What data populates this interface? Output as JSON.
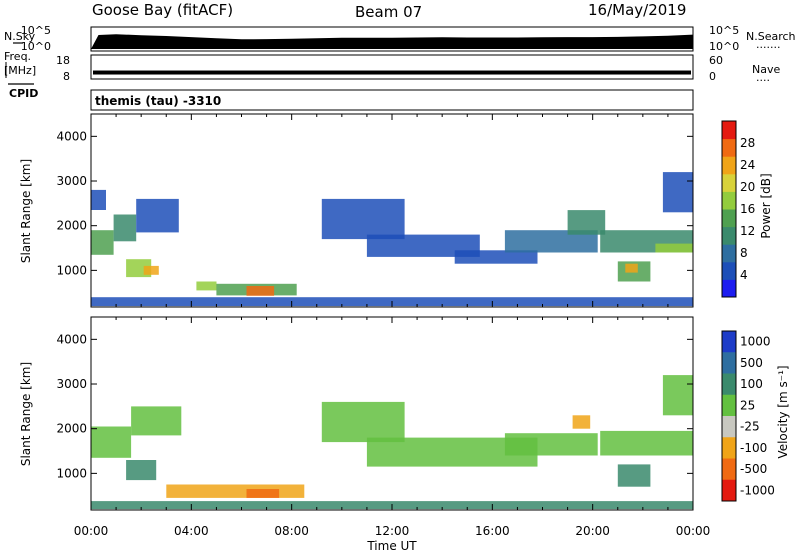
{
  "header": {
    "station": "Goose Bay (fitACF)",
    "beam": "Beam 07",
    "date": "16/May/2019"
  },
  "side_labels": {
    "nsky": "N.Sky",
    "nsearch": "N.Search",
    "nsearch_dots": "·······",
    "freq_line1": "Freq.",
    "freq_line2": "[MHz]",
    "nave": "Nave",
    "nave_dots": "····",
    "cpid": "CPID",
    "cpid_value": "themis (tau) -3310"
  },
  "colors": {
    "trace": "#000000",
    "grid": "#000000"
  },
  "chart_data": [
    {
      "type": "line",
      "id": "noise",
      "left_axis_labels": [
        "10^5",
        "10^0"
      ],
      "right_axis_labels": [
        "10^5",
        "10^0"
      ],
      "x_range": [
        0,
        24
      ],
      "series": [
        {
          "x": [
            0.0,
            0.3,
            1.0,
            2.0,
            3.0,
            4.0,
            5.0,
            6.0,
            7.0,
            8.0,
            9.0,
            10.0,
            11.0,
            12.0,
            13.0,
            14.0,
            15.0,
            16.0,
            17.0,
            18.0,
            19.0,
            20.0,
            21.0,
            22.0,
            23.0,
            24.0
          ],
          "y": [
            0.0,
            0.78,
            0.82,
            0.76,
            0.72,
            0.66,
            0.6,
            0.54,
            0.55,
            0.57,
            0.6,
            0.62,
            0.63,
            0.63,
            0.64,
            0.65,
            0.64,
            0.64,
            0.64,
            0.65,
            0.66,
            0.66,
            0.67,
            0.7,
            0.74,
            0.8
          ]
        }
      ]
    },
    {
      "type": "line",
      "id": "freq-nave",
      "left_axis_labels": [
        "18",
        "8"
      ],
      "right_axis_labels": [
        "60",
        "0"
      ],
      "x_range": [
        0,
        24
      ],
      "series": [
        {
          "x": [
            0,
            24
          ],
          "y": [
            10.7,
            10.7
          ]
        }
      ]
    },
    {
      "type": "heatmap",
      "id": "power",
      "title": "",
      "ylabel": "Slant Range [km]",
      "ylim": [
        180,
        4500
      ],
      "y_ticks": [
        1000,
        2000,
        3000,
        4000
      ],
      "x_ticks": [
        "00:00",
        "04:00",
        "08:00",
        "12:00",
        "16:00",
        "20:00",
        "00:00"
      ],
      "x_range": [
        0,
        24
      ],
      "colorbar_label": "Power [dB]",
      "colorbar_ticks": [
        4,
        8,
        12,
        16,
        20,
        24,
        28
      ],
      "colorbar_range": [
        0,
        32
      ],
      "colorbar_colors": [
        "#1d1df0",
        "#1d4fb8",
        "#2e6ea0",
        "#3a8a6c",
        "#4fa050",
        "#93cc3d",
        "#d8d23a",
        "#f0a418",
        "#f06a12",
        "#e41a10"
      ],
      "regions": [
        {
          "x": [
            0.0,
            0.9
          ],
          "y": [
            1350,
            1900
          ],
          "value": 14
        },
        {
          "x": [
            0.9,
            1.8
          ],
          "y": [
            1650,
            2250
          ],
          "value": 10
        },
        {
          "x": [
            1.8,
            3.5
          ],
          "y": [
            1850,
            2600
          ],
          "value": 6
        },
        {
          "x": [
            0.0,
            0.6
          ],
          "y": [
            2350,
            2800
          ],
          "value": 6
        },
        {
          "x": [
            1.4,
            2.4
          ],
          "y": [
            850,
            1250
          ],
          "value": 18
        },
        {
          "x": [
            2.1,
            2.7
          ],
          "y": [
            900,
            1100
          ],
          "value": 24
        },
        {
          "x": [
            4.2,
            5.0
          ],
          "y": [
            550,
            750
          ],
          "value": 16
        },
        {
          "x": [
            5.0,
            8.2
          ],
          "y": [
            440,
            700
          ],
          "value": 14
        },
        {
          "x": [
            6.2,
            7.3
          ],
          "y": [
            430,
            650
          ],
          "value": 28
        },
        {
          "x": [
            0.0,
            24.0
          ],
          "y": [
            200,
            400
          ],
          "value": 6
        },
        {
          "x": [
            9.2,
            12.5
          ],
          "y": [
            1700,
            2600
          ],
          "value": 6
        },
        {
          "x": [
            11.0,
            15.5
          ],
          "y": [
            1300,
            1800
          ],
          "value": 6
        },
        {
          "x": [
            14.5,
            17.8
          ],
          "y": [
            1150,
            1450
          ],
          "value": 6
        },
        {
          "x": [
            16.5,
            20.2
          ],
          "y": [
            1400,
            1900
          ],
          "value": 8
        },
        {
          "x": [
            19.0,
            20.5
          ],
          "y": [
            1800,
            2350
          ],
          "value": 10
        },
        {
          "x": [
            20.3,
            24.0
          ],
          "y": [
            1400,
            1900
          ],
          "value": 10
        },
        {
          "x": [
            22.5,
            24.0
          ],
          "y": [
            1400,
            1600
          ],
          "value": 16
        },
        {
          "x": [
            21.0,
            22.3
          ],
          "y": [
            750,
            1200
          ],
          "value": 14
        },
        {
          "x": [
            21.3,
            21.8
          ],
          "y": [
            950,
            1150
          ],
          "value": 24
        },
        {
          "x": [
            22.8,
            24.0
          ],
          "y": [
            2300,
            3200
          ],
          "value": 6
        }
      ]
    },
    {
      "type": "heatmap",
      "id": "velocity",
      "title": "",
      "ylabel": "Slant Range [km]",
      "ylim": [
        180,
        4500
      ],
      "y_ticks": [
        1000,
        2000,
        3000,
        4000
      ],
      "x_ticks": [
        "00:00",
        "04:00",
        "08:00",
        "12:00",
        "16:00",
        "20:00",
        "00:00"
      ],
      "x_range": [
        0,
        24
      ],
      "xlabel": "Time UT",
      "colorbar_label": "Velocity [m s⁻¹]",
      "colorbar_ticks": [
        "1000",
        "500",
        "100",
        "25",
        "-25",
        "-100",
        "-500",
        "-1000"
      ],
      "colorbar_colors": [
        "#1d3cc8",
        "#2e6ea0",
        "#3a8a6c",
        "#63c040",
        "#c8c8c0",
        "#f0a418",
        "#f06a12",
        "#e41a10"
      ],
      "regions": [
        {
          "x": [
            0.0,
            1.6
          ],
          "y": [
            1350,
            2050
          ],
          "value": "25"
        },
        {
          "x": [
            1.6,
            3.6
          ],
          "y": [
            1850,
            2500
          ],
          "value": "25"
        },
        {
          "x": [
            1.4,
            2.6
          ],
          "y": [
            850,
            1300
          ],
          "value": "100"
        },
        {
          "x": [
            3.0,
            8.5
          ],
          "y": [
            450,
            750
          ],
          "value": "-100"
        },
        {
          "x": [
            6.2,
            7.5
          ],
          "y": [
            450,
            650
          ],
          "value": "-500"
        },
        {
          "x": [
            0.0,
            24.0
          ],
          "y": [
            200,
            380
          ],
          "value": "100"
        },
        {
          "x": [
            9.2,
            12.5
          ],
          "y": [
            1700,
            2600
          ],
          "value": "25"
        },
        {
          "x": [
            11.0,
            17.8
          ],
          "y": [
            1150,
            1800
          ],
          "value": "25"
        },
        {
          "x": [
            16.5,
            20.2
          ],
          "y": [
            1400,
            1900
          ],
          "value": "25"
        },
        {
          "x": [
            19.2,
            19.9
          ],
          "y": [
            2000,
            2300
          ],
          "value": "-100"
        },
        {
          "x": [
            20.3,
            24.0
          ],
          "y": [
            1400,
            1950
          ],
          "value": "25"
        },
        {
          "x": [
            21.0,
            22.3
          ],
          "y": [
            700,
            1200
          ],
          "value": "100"
        },
        {
          "x": [
            22.8,
            24.0
          ],
          "y": [
            2300,
            3200
          ],
          "value": "25"
        }
      ]
    }
  ]
}
